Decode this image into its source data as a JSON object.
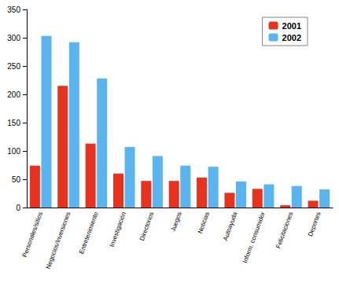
{
  "chart_data": {
    "type": "bar",
    "categories": [
      "Personales/sitios",
      "Negocios/Inversiones",
      "Entretenimiento",
      "Investigación",
      "Directorios",
      "Juegos",
      "Noticias",
      "Autoayuda",
      "Inform. consumidor",
      "Felicitaciones",
      "Deportes"
    ],
    "series": [
      {
        "name": "2001",
        "color": "#e8321e",
        "values": [
          74,
          215,
          113,
          60,
          47,
          47,
          53,
          26,
          33,
          4,
          12
        ]
      },
      {
        "name": "2002",
        "color": "#5ab4f0",
        "values": [
          303,
          292,
          228,
          107,
          91,
          74,
          72,
          46,
          41,
          38,
          32
        ]
      }
    ],
    "ylim": [
      0,
      350
    ],
    "yticks": [
      0,
      50,
      100,
      150,
      200,
      250,
      300,
      350
    ],
    "grid": false,
    "legend": "top-right"
  }
}
